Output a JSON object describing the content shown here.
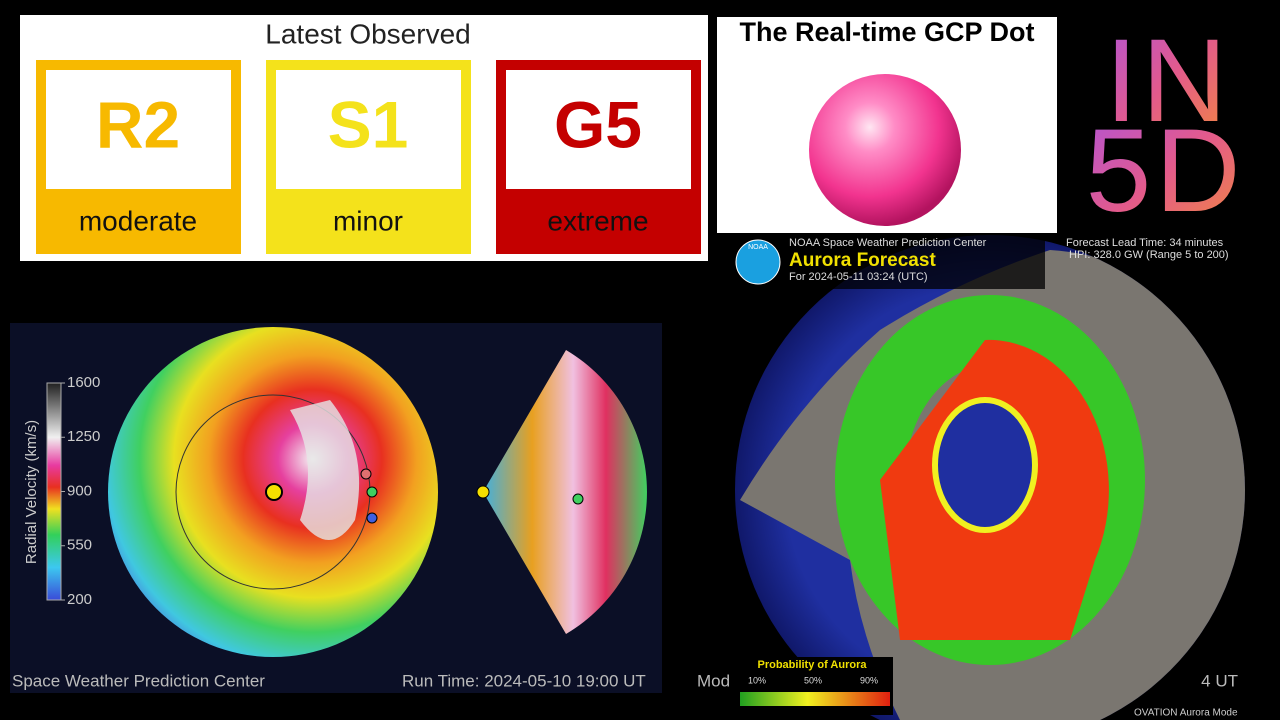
{
  "scales_panel": {
    "title": "Latest Observed",
    "scales": [
      {
        "level": "R2",
        "label": "moderate",
        "color": "#f7b900"
      },
      {
        "level": "S1",
        "label": "minor",
        "color": "#f4e21b"
      },
      {
        "level": "G5",
        "label": "extreme",
        "color": "#c40000"
      }
    ]
  },
  "gcp_panel": {
    "title": "The Real-time GCP Dot",
    "dot_color": "#ff4fa3"
  },
  "brand": {
    "line1": "IN",
    "line2": "5D"
  },
  "enlil_panel": {
    "colorbar_title": "Radial Velocity (km/s)",
    "colorbar_ticks": [
      1600,
      1250,
      900,
      550,
      200
    ],
    "footer_left": "Space Weather Prediction Center",
    "footer_run_time": "Run Time: 2024-05-10 19:00 UT",
    "footer_cut_left": "Mod",
    "footer_cut_right": "4 UT"
  },
  "aurora_panel": {
    "logo": "NOAA",
    "org": "NOAA Space Weather Prediction Center",
    "title": "Aurora Forecast",
    "time": "For 2024-05-11 03:24 (UTC)",
    "lead_time": "Forecast Lead Time:  34 minutes",
    "hpi": "HPI: 328.0 GW (Range 5 to 200)",
    "legend_title": "Probability of Aurora",
    "legend_labels": [
      "10%",
      "50%",
      "90%"
    ],
    "model": "OVATION Aurora Mode"
  }
}
